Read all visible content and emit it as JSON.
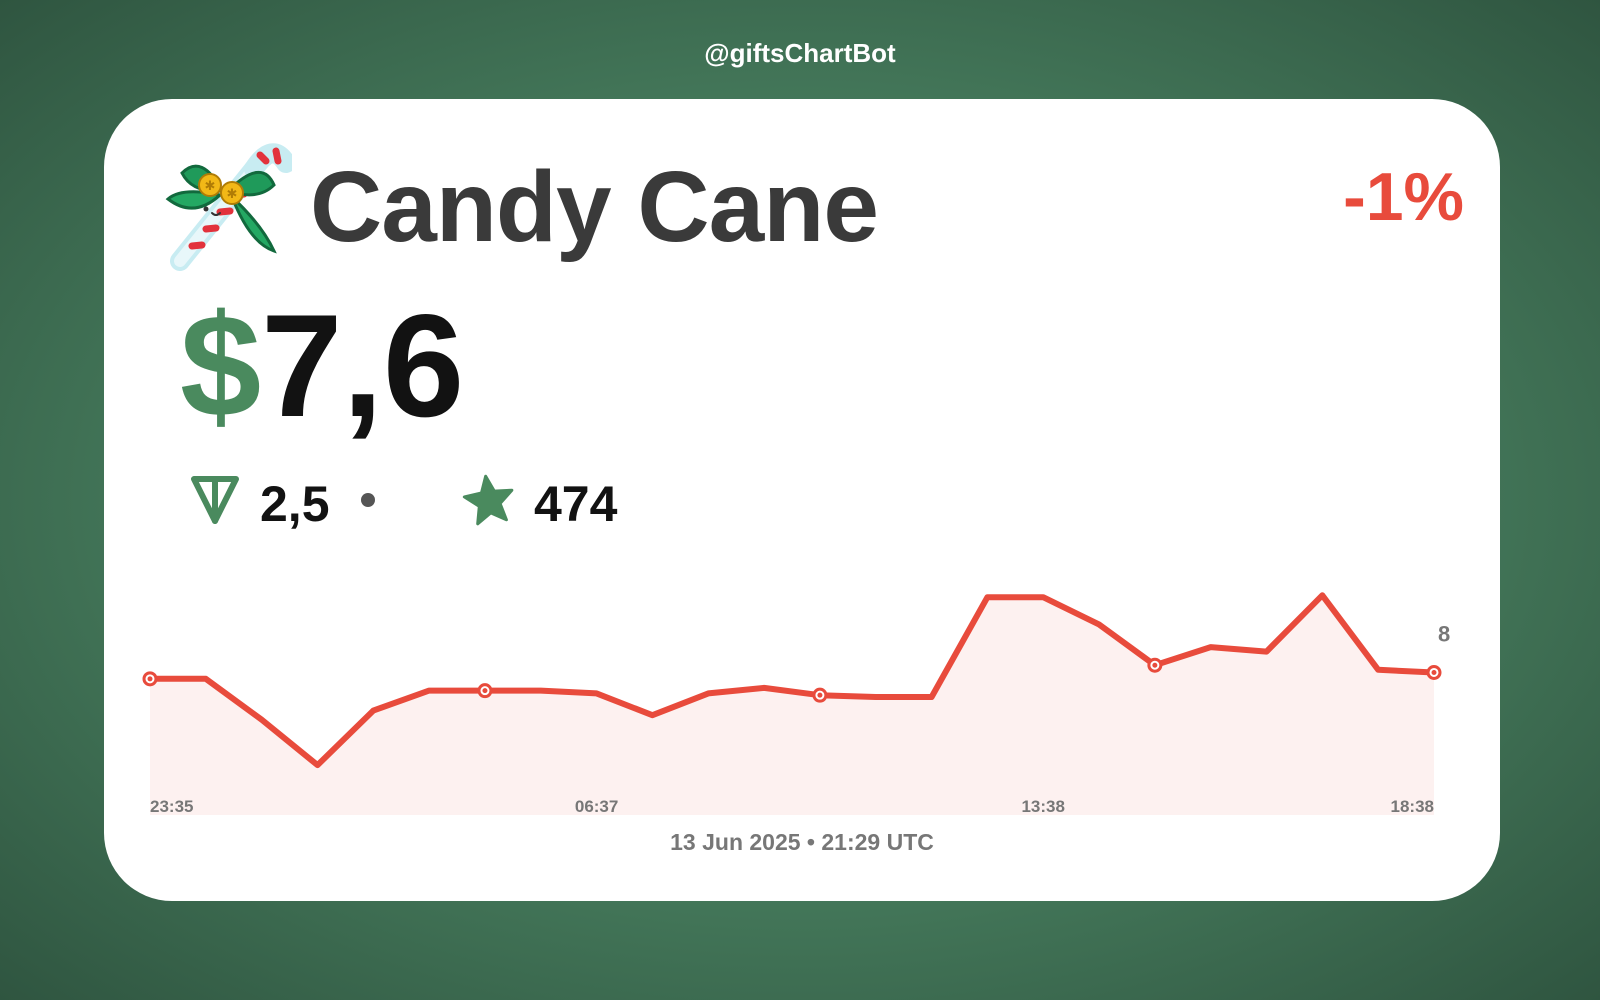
{
  "header": {
    "bot_handle": "@giftsChartBot"
  },
  "gift": {
    "name": "Candy Cane",
    "icon": "candy-cane-icon",
    "change": "-1%",
    "currency_symbol": "$",
    "price": "7,6",
    "ton_price": "2,5",
    "star_price": "474"
  },
  "footer": {
    "timestamp": "13 Jun 2025 • 21:29 UTC"
  },
  "colors": {
    "line": "#e84b3c",
    "fill": "#fdf1f0",
    "accent_green": "#4a8a5e",
    "negative_red": "#e84b3c"
  },
  "chart_data": {
    "type": "line",
    "x_tick_labels": [
      "23:35",
      "06:37",
      "13:38",
      "18:38"
    ],
    "y_tick_labels": [
      "8"
    ],
    "ylim": [
      6.0,
      8.6
    ],
    "series": [
      {
        "values": [
          7.5,
          7.5,
          7.05,
          6.55,
          7.15,
          7.37,
          7.37,
          7.37,
          7.34,
          7.1,
          7.34,
          7.4,
          7.32,
          7.3,
          7.3,
          8.4,
          8.4,
          8.1,
          7.65,
          7.85,
          7.8,
          8.42,
          7.6,
          7.57
        ],
        "markers": [
          0,
          6,
          12,
          18,
          23
        ]
      }
    ],
    "xlabel": "",
    "ylabel": "",
    "grid": false,
    "legend": "none"
  }
}
